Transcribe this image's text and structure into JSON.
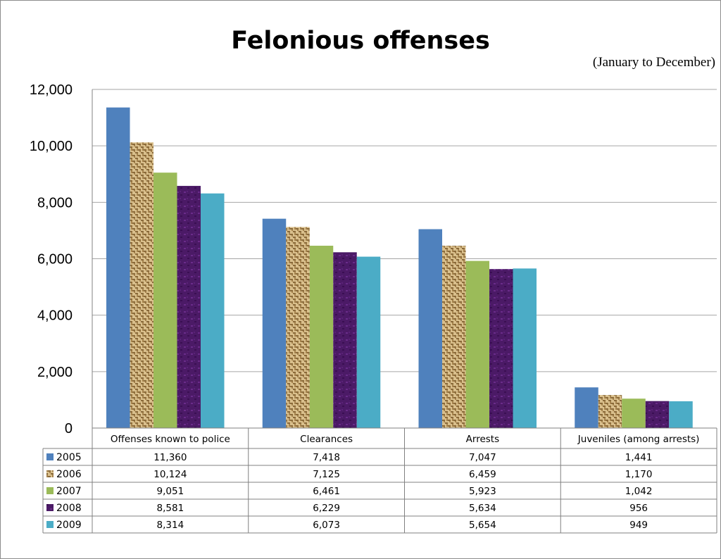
{
  "chart_data": {
    "type": "bar",
    "title": "Felonious offenses",
    "subtitle": "(January to December)",
    "categories": [
      "Offenses known to police",
      "Clearances",
      "Arrests",
      "Juveniles (among arrests)"
    ],
    "series": [
      {
        "name": "2005",
        "values": [
          11360,
          7418,
          7047,
          1441
        ],
        "labels": [
          "11,360",
          "7,418",
          "7,047",
          "1,441"
        ],
        "color": "#4f81bd",
        "pattern": "solid"
      },
      {
        "name": "2006",
        "values": [
          10124,
          7125,
          6459,
          1170
        ],
        "labels": [
          "10,124",
          "7,125",
          "6,459",
          "1,170"
        ],
        "color": "#c8a873",
        "pattern": "burlap"
      },
      {
        "name": "2007",
        "values": [
          9051,
          6461,
          5923,
          1042
        ],
        "labels": [
          "9,051",
          "6,461",
          "5,923",
          "1,042"
        ],
        "color": "#9bbb59",
        "pattern": "solid"
      },
      {
        "name": "2008",
        "values": [
          8581,
          6229,
          5634,
          956
        ],
        "labels": [
          "8,581",
          "6,229",
          "5,634",
          "956"
        ],
        "color": "#4b1a66",
        "pattern": "purple-texture"
      },
      {
        "name": "2009",
        "values": [
          8314,
          6073,
          5654,
          949
        ],
        "labels": [
          "8,314",
          "6,073",
          "5,654",
          "949"
        ],
        "color": "#4bacc6",
        "pattern": "solid"
      }
    ],
    "ylim": [
      0,
      12000
    ],
    "yticks": [
      0,
      2000,
      4000,
      6000,
      8000,
      10000,
      12000
    ],
    "ytick_labels": [
      "0",
      "2,000",
      "4,000",
      "6,000",
      "8,000",
      "10,000",
      "12,000"
    ],
    "grid": true,
    "legend": "data-table"
  }
}
